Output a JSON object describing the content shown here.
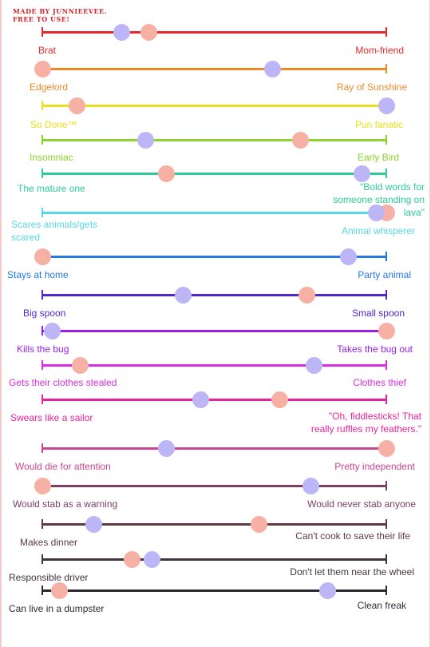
{
  "credit": {
    "line1": "MADE BY JUNNIEEVEE.",
    "line2": "FREE TO USE!"
  },
  "colors": {
    "dot_a": "#bcb6f6",
    "dot_b": "#f7b1a4",
    "frame": "#f6c9c9"
  },
  "scales": [
    {
      "left": "Brat",
      "right": "Mom-friend",
      "color": "#e8282d",
      "dot_a": 0.23,
      "dot_b": 0.31
    },
    {
      "left": "Edgelord",
      "right": "Ray of Sunshine",
      "color": "#f08a28",
      "dot_a": 0.67,
      "dot_b": 0.0
    },
    {
      "left": "So Done™",
      "right": "Pun fanatic",
      "color": "#ece01a",
      "dot_a": 1.0,
      "dot_b": 0.1
    },
    {
      "left": "Insomniac",
      "right": "Early Bird",
      "color": "#8ad42b",
      "dot_a": 0.3,
      "dot_b": 0.75
    },
    {
      "left": "The mature one",
      "right": "\"Bold words for someone standing on lava\"",
      "color": "#2dcd96",
      "dot_a": 0.93,
      "dot_b": 0.36
    },
    {
      "left": "Scares animals/gets scared",
      "right": "Animal whisperer",
      "color": "#56d9e6",
      "dot_a": 0.97,
      "dot_b": 1.0
    },
    {
      "left": "Stays at home",
      "right": "Party animal",
      "color": "#2478e2",
      "dot_a": 0.89,
      "dot_b": 0.0
    },
    {
      "left": "Big spoon",
      "right": "Small spoon",
      "color": "#5226cf",
      "dot_a": 0.41,
      "dot_b": 0.77
    },
    {
      "left": "Kills the bug",
      "right": "Takes the bug out",
      "color": "#9a1ee6",
      "dot_a": 0.03,
      "dot_b": 1.0
    },
    {
      "left": "Gets their clothes stealed",
      "right": "Clothes thief",
      "color": "#d82de0",
      "dot_a": 0.79,
      "dot_b": 0.11
    },
    {
      "left": "Swears like a sailor",
      "right": "\"Oh, fiddlesticks! That really ruffles my feathers.\"",
      "color": "#e8229c",
      "dot_a": 0.46,
      "dot_b": 0.69
    },
    {
      "left": "Would die for attention",
      "right": "Pretty independent",
      "color": "#c94690",
      "dot_a": 0.36,
      "dot_b": 1.0
    },
    {
      "left": "Would stab as a warning",
      "right": "Would never stab anyone",
      "color": "#7c3d60",
      "dot_a": 0.78,
      "dot_b": 0.0
    },
    {
      "left": "Makes dinner",
      "right": "Can't cook to save their life",
      "color": "#5f3a40",
      "dot_a": 0.15,
      "dot_b": 0.63
    },
    {
      "left": "Responsible driver",
      "right": "Don't let them near the wheel",
      "color": "#41343c",
      "dot_a": 0.32,
      "dot_b": 0.26
    },
    {
      "left": "Can live in a dumpster",
      "right": "Clean freak",
      "color": "#2b2a33",
      "dot_a": 0.83,
      "dot_b": 0.05
    }
  ]
}
